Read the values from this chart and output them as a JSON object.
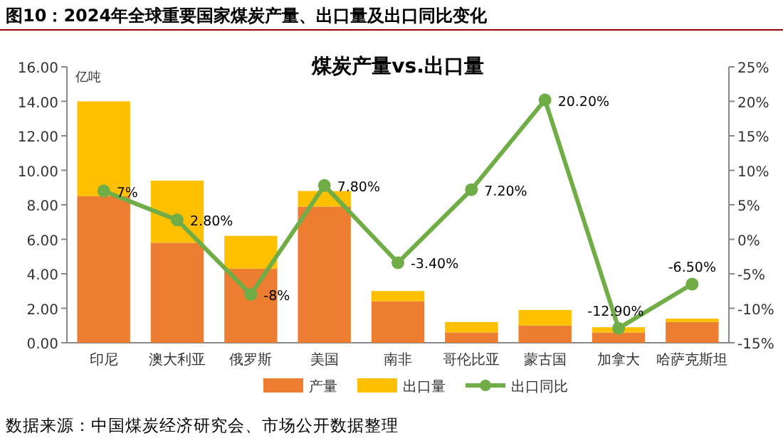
{
  "chart_data": {
    "type": "bar",
    "title": "图10：2024年全球重要国家煤炭产量、出口量及出口同比变化",
    "subtitle": "煤炭产量vs.出口量",
    "ylabel": "亿吨",
    "categories": [
      "印尼",
      "澳大利亚",
      "俄罗斯",
      "美国",
      "南非",
      "哥伦比亚",
      "蒙古国",
      "加拿大",
      "哈萨克斯坦"
    ],
    "stacked": true,
    "series": [
      {
        "name": "产量",
        "color": "#ed7d31",
        "values": [
          8.5,
          5.8,
          4.3,
          7.9,
          2.4,
          0.6,
          1.0,
          0.6,
          1.2
        ]
      },
      {
        "name": "出口量",
        "color": "#ffc000",
        "values": [
          5.5,
          3.6,
          1.9,
          0.9,
          0.6,
          0.6,
          0.9,
          0.3,
          0.2
        ]
      },
      {
        "name": "出口同比",
        "type": "line",
        "axis": "y2",
        "color": "#70ad47",
        "values": [
          7,
          2.8,
          -8,
          7.8,
          -3.4,
          7.2,
          20.2,
          -12.9,
          -6.5
        ],
        "value_labels": [
          "7%",
          "2.80%",
          "-8%",
          "7.80%",
          "-3.40%",
          "7.20%",
          "20.20%",
          "-12.90%",
          "-6.50%"
        ]
      }
    ],
    "ylim": [
      0,
      16
    ],
    "yticks": [
      {
        "value": 0,
        "label": "0.00"
      },
      {
        "value": 2,
        "label": "2.00"
      },
      {
        "value": 4,
        "label": "4.00"
      },
      {
        "value": 6,
        "label": "6.00"
      },
      {
        "value": 8,
        "label": "8.00"
      },
      {
        "value": 10,
        "label": "10.00"
      },
      {
        "value": 12,
        "label": "12.00"
      },
      {
        "value": 14,
        "label": "14.00"
      },
      {
        "value": 16,
        "label": "16.00"
      }
    ],
    "y2lim": [
      -15,
      25
    ],
    "y2ticks": [
      {
        "value": -15,
        "label": "-15%"
      },
      {
        "value": -10,
        "label": "-10%"
      },
      {
        "value": -5,
        "label": "-5%"
      },
      {
        "value": 0,
        "label": "0%"
      },
      {
        "value": 5,
        "label": "5%"
      },
      {
        "value": 10,
        "label": "10%"
      },
      {
        "value": 15,
        "label": "15%"
      },
      {
        "value": 20,
        "label": "20%"
      },
      {
        "value": 25,
        "label": "25%"
      }
    ],
    "legend": "bottom",
    "marker": "circle",
    "grid": false,
    "annotations": [
      "数据来源：中国煤炭经济研究会、市场公开数据整理"
    ]
  }
}
